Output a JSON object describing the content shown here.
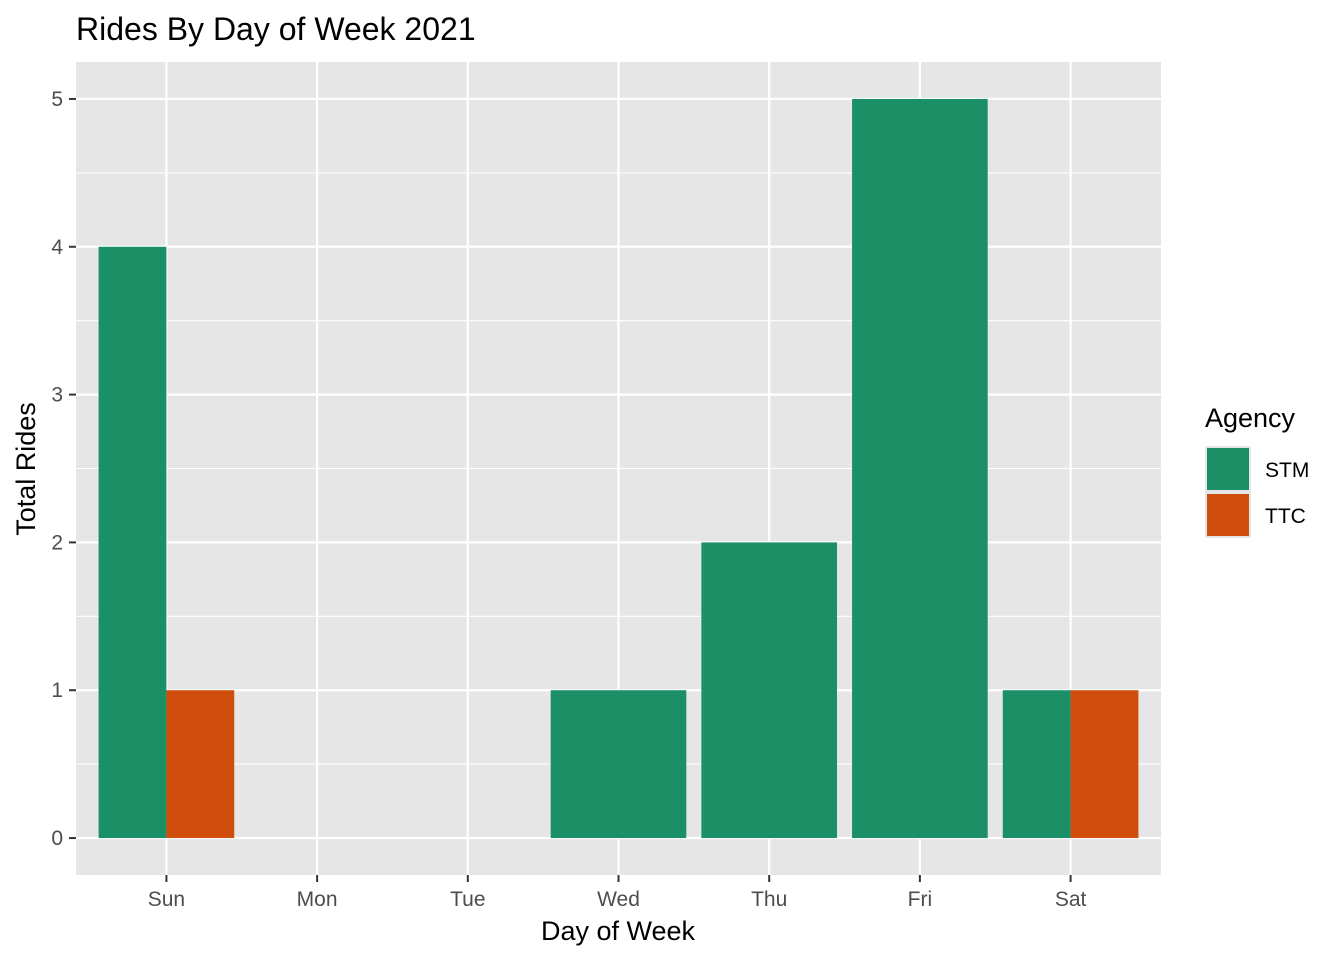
{
  "chart_data": {
    "type": "bar",
    "title": "Rides By Day of Week 2021",
    "xlabel": "Day of Week",
    "ylabel": "Total Rides",
    "categories": [
      "Sun",
      "Mon",
      "Tue",
      "Wed",
      "Thu",
      "Fri",
      "Sat"
    ],
    "series": [
      {
        "name": "STM",
        "color": "#1b9066",
        "values": [
          4,
          null,
          null,
          1,
          2,
          5,
          1
        ]
      },
      {
        "name": "TTC",
        "color": "#d04c0a",
        "values": [
          1,
          null,
          null,
          null,
          null,
          null,
          1
        ]
      }
    ],
    "ylim": [
      -0.25,
      5.25
    ],
    "yticks": [
      0,
      1,
      2,
      3,
      4,
      5
    ],
    "grid": true,
    "panel_background": "#e6e6e6",
    "grid_color": "#ffffff",
    "legend": {
      "title": "Agency",
      "placement": "right"
    }
  }
}
